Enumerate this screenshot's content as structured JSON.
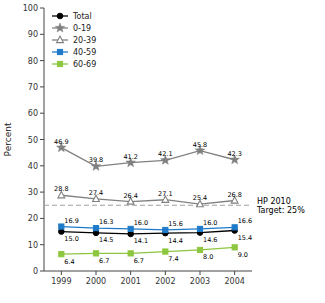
{
  "chart_data": {
    "type": "line",
    "y_label": "Percent",
    "categories": [
      "1999",
      "2000",
      "2001",
      "2002",
      "2003",
      "2004"
    ],
    "series": [
      {
        "name": "Total",
        "color": "#000000",
        "marker": "circle",
        "values": [
          15.0,
          14.5,
          14.1,
          14.4,
          14.6,
          15.4
        ],
        "value_labels": [
          "15.0",
          "14.5",
          "14.1",
          "14.4",
          "14.6",
          "15.4"
        ]
      },
      {
        "name": "0-19",
        "color": "#808080",
        "marker": "star",
        "values": [
          46.9,
          39.8,
          41.2,
          42.1,
          45.8,
          42.3
        ],
        "value_labels": [
          "46.9",
          "39.8",
          "41.2",
          "42.1",
          "45.8",
          "42.3"
        ]
      },
      {
        "name": "20-39",
        "color": "#808080",
        "marker": "triangle-open",
        "values": [
          28.8,
          27.4,
          26.4,
          27.1,
          25.4,
          26.8
        ],
        "value_labels": [
          "28.8",
          "27.4",
          "26.4",
          "27.1",
          "25.4",
          "26.8"
        ]
      },
      {
        "name": "40-59",
        "color": "#1F7BC9",
        "marker": "square",
        "values": [
          16.9,
          16.3,
          16.0,
          15.6,
          16.0,
          16.6
        ],
        "value_labels": [
          "16.9",
          "16.3",
          "16.0",
          "15.6",
          "16.0",
          "16.6"
        ]
      },
      {
        "name": "60-69",
        "color": "#8DC63F",
        "marker": "square",
        "values": [
          6.4,
          6.7,
          6.7,
          7.4,
          8.0,
          9.0
        ],
        "value_labels": [
          "6.4",
          "6.7",
          "6.7",
          "7.4",
          "8.0",
          "9.0"
        ]
      }
    ],
    "annotations": [
      {
        "text": "HP 2010\nTarget: 25%",
        "y": 25,
        "color": "#A0A0A0",
        "line_style": "dashed"
      }
    ],
    "ylim": [
      0,
      100
    ],
    "yticks": [
      0,
      10,
      20,
      30,
      40,
      50,
      60,
      70,
      80,
      90,
      100
    ],
    "grid": false,
    "legend": "upper left",
    "data_labels": true
  }
}
